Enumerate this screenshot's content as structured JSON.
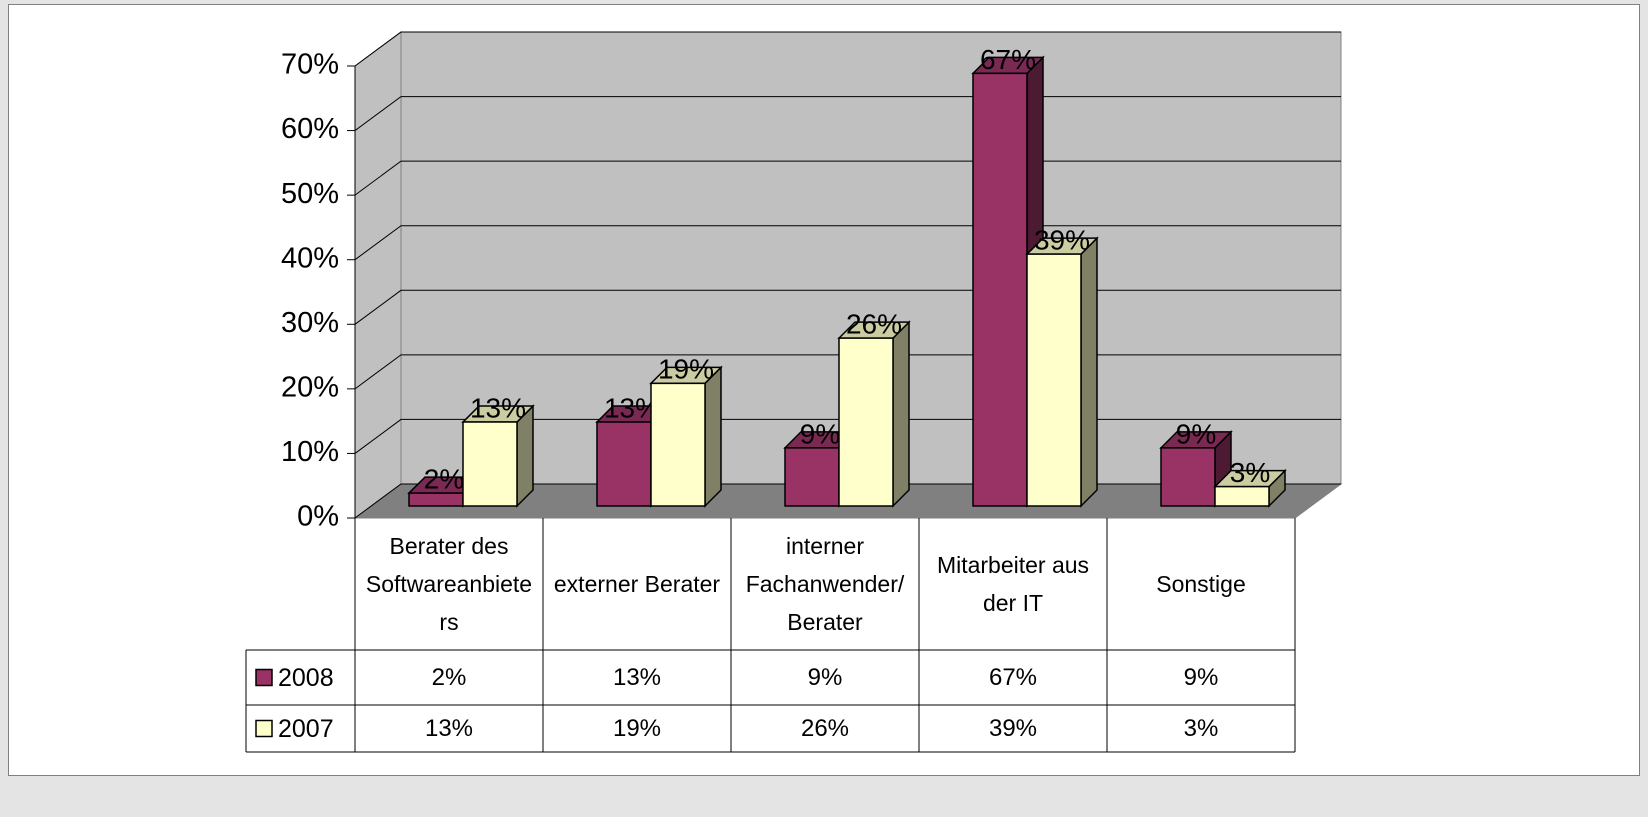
{
  "chart_data": {
    "type": "bar3d",
    "categories": [
      "Berater des Softwareanbieters",
      "externer Berater",
      "interner Fachanwender/Berater",
      "Mitarbeiter aus der IT",
      "Sonstige"
    ],
    "series": [
      {
        "name": "2008",
        "color": "#993366",
        "values": [
          2,
          13,
          9,
          67,
          9
        ],
        "value_labels": [
          "2%",
          "13%",
          "9%",
          "67%",
          "9%"
        ]
      },
      {
        "name": "2007",
        "color": "#ffffcc",
        "values": [
          13,
          19,
          26,
          39,
          3
        ],
        "value_labels": [
          "13%",
          "19%",
          "26%",
          "39%",
          "3%"
        ]
      }
    ],
    "ylim": [
      0,
      70
    ],
    "yticks": [
      {
        "value": 0,
        "label": "0%"
      },
      {
        "value": 10,
        "label": "10%"
      },
      {
        "value": 20,
        "label": "20%"
      },
      {
        "value": 30,
        "label": "30%"
      },
      {
        "value": 40,
        "label": "40%"
      },
      {
        "value": 50,
        "label": "50%"
      },
      {
        "value": 60,
        "label": "60%"
      },
      {
        "value": 70,
        "label": "70%"
      }
    ],
    "grid": true,
    "data_table": true
  }
}
